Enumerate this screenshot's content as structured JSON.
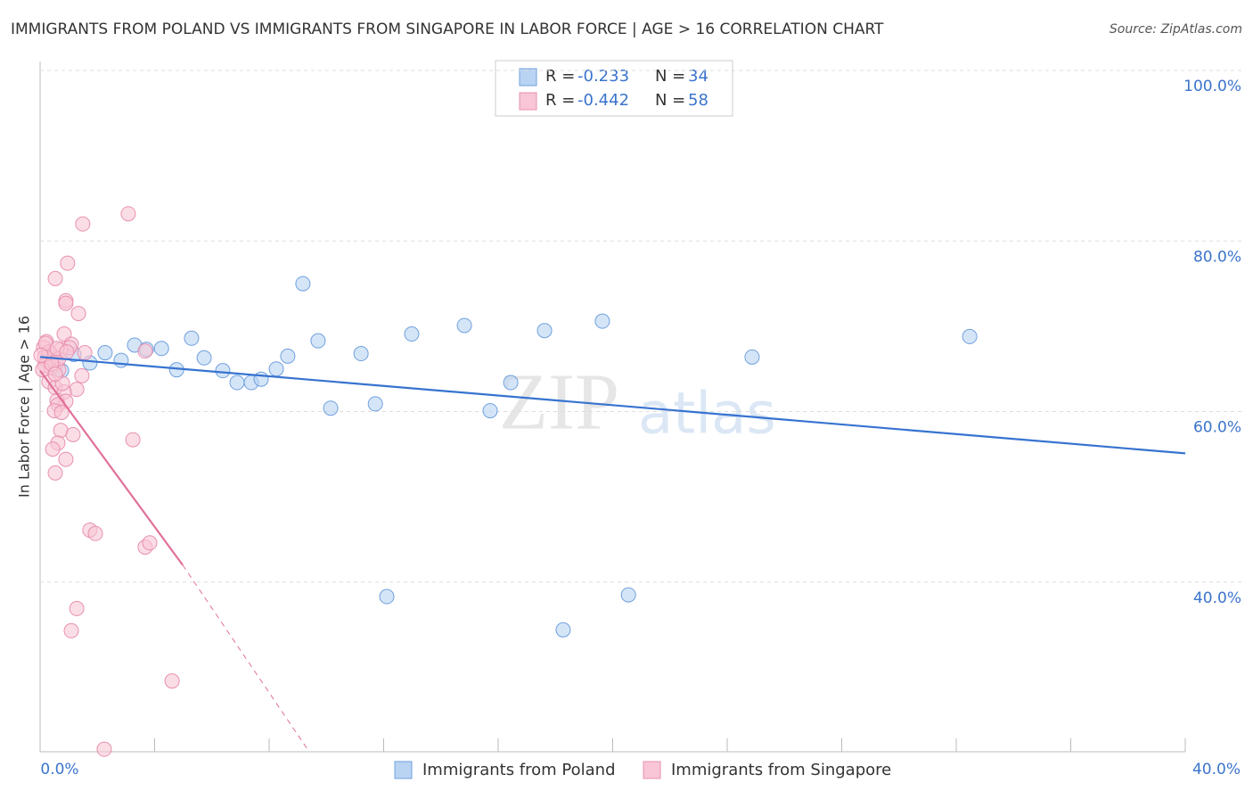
{
  "chart_data": {
    "type": "scatter",
    "title": "IMMIGRANTS FROM POLAND VS IMMIGRANTS FROM SINGAPORE IN LABOR FORCE | AGE > 16 CORRELATION CHART",
    "source": "Source: ZipAtlas.com",
    "y_label": "In Labor Force | Age > 16",
    "watermark": [
      "ZIP",
      "atlas"
    ],
    "legend_r_label": "R =",
    "legend_n_label": "N =",
    "xlim": [
      0,
      40
    ],
    "ylim": [
      20,
      101
    ],
    "xticks": [
      {
        "value": 0,
        "label": "0.0%"
      },
      {
        "value": 40,
        "label": "40.0%"
      }
    ],
    "xtick_marks": [
      0,
      4,
      8,
      12,
      16,
      20,
      24,
      28,
      32,
      36,
      40
    ],
    "yticks": [
      {
        "value": 40,
        "label": "40.0%"
      },
      {
        "value": 60,
        "label": "60.0%"
      },
      {
        "value": 80,
        "label": "80.0%"
      },
      {
        "value": 100,
        "label": "100.0%"
      }
    ],
    "grid": true,
    "series": [
      {
        "name": "Immigrants from Poland",
        "color": "#6fa0de",
        "fill": "#b9d3f3",
        "line_color": "#3773d0",
        "r": -0.233,
        "n": 34,
        "x": [
          0.75,
          1.18,
          1.74,
          2.27,
          2.83,
          3.3,
          3.71,
          4.24,
          4.77,
          5.29,
          5.73,
          6.38,
          6.88,
          7.38,
          7.72,
          8.25,
          8.65,
          9.18,
          9.71,
          10.15,
          11.21,
          11.71,
          12.11,
          12.98,
          14.82,
          15.72,
          16.44,
          17.62,
          18.27,
          19.64,
          20.55,
          24.87,
          32.47,
          0.47
        ],
        "values": [
          64.8,
          66.7,
          65.7,
          66.9,
          66.0,
          67.8,
          67.3,
          67.4,
          64.9,
          68.6,
          66.3,
          64.8,
          63.4,
          63.4,
          63.8,
          65.0,
          66.5,
          75.0,
          68.3,
          60.4,
          66.8,
          60.9,
          38.3,
          69.1,
          70.1,
          60.1,
          63.4,
          69.5,
          34.4,
          70.6,
          38.5,
          66.4,
          68.8,
          65.4
        ],
        "trend": {
          "x": [
            0,
            40
          ],
          "y": [
            66.4,
            55.1
          ]
        }
      },
      {
        "name": "Immigrants from Singapore",
        "color": "#e890ae",
        "fill": "#f8c6d6",
        "line_color": "#e0709a",
        "r": -0.442,
        "n": 58,
        "x": [
          1.49,
          3.08,
          0.96,
          0.53,
          0.9,
          0.9,
          1.34,
          0.84,
          0.22,
          1.09,
          0.12,
          1.03,
          3.67,
          1.56,
          0.37,
          0.16,
          0.47,
          0.25,
          0.56,
          0.16,
          0.37,
          0.65,
          1.46,
          0.31,
          0.53,
          1.28,
          0.84,
          0.59,
          0.9,
          0.62,
          0.5,
          0.75,
          0.72,
          1.15,
          3.24,
          0.62,
          0.44,
          0.9,
          0.53,
          1.74,
          1.93,
          3.67,
          3.83,
          1.28,
          1.09,
          4.61,
          2.24,
          0.72,
          0.31,
          0.65,
          0.09,
          0.78,
          0.19,
          0.4,
          0.59,
          0.93,
          0.03,
          0.53
        ],
        "values": [
          82.0,
          83.2,
          77.4,
          75.6,
          73.0,
          72.7,
          71.5,
          69.1,
          68.2,
          67.9,
          67.5,
          67.5,
          67.1,
          66.9,
          66.8,
          66.4,
          66.4,
          65.9,
          65.6,
          65.4,
          65.2,
          64.9,
          64.2,
          63.5,
          62.8,
          62.6,
          62.3,
          61.3,
          61.2,
          60.8,
          60.1,
          59.9,
          57.8,
          57.3,
          56.7,
          56.3,
          55.6,
          54.4,
          52.8,
          46.1,
          45.7,
          44.1,
          44.6,
          36.9,
          34.3,
          28.4,
          20.4,
          67.3,
          67.0,
          66.2,
          64.9,
          63.3,
          68.0,
          65.6,
          67.4,
          67.0,
          66.6,
          64.4
        ],
        "trend": {
          "x": [
            0,
            4.98
          ],
          "y": [
            64.8,
            42.0
          ]
        },
        "trend_extension": {
          "x": [
            4.98,
            9.34
          ],
          "y": [
            42.0,
            20.4
          ]
        }
      }
    ]
  }
}
